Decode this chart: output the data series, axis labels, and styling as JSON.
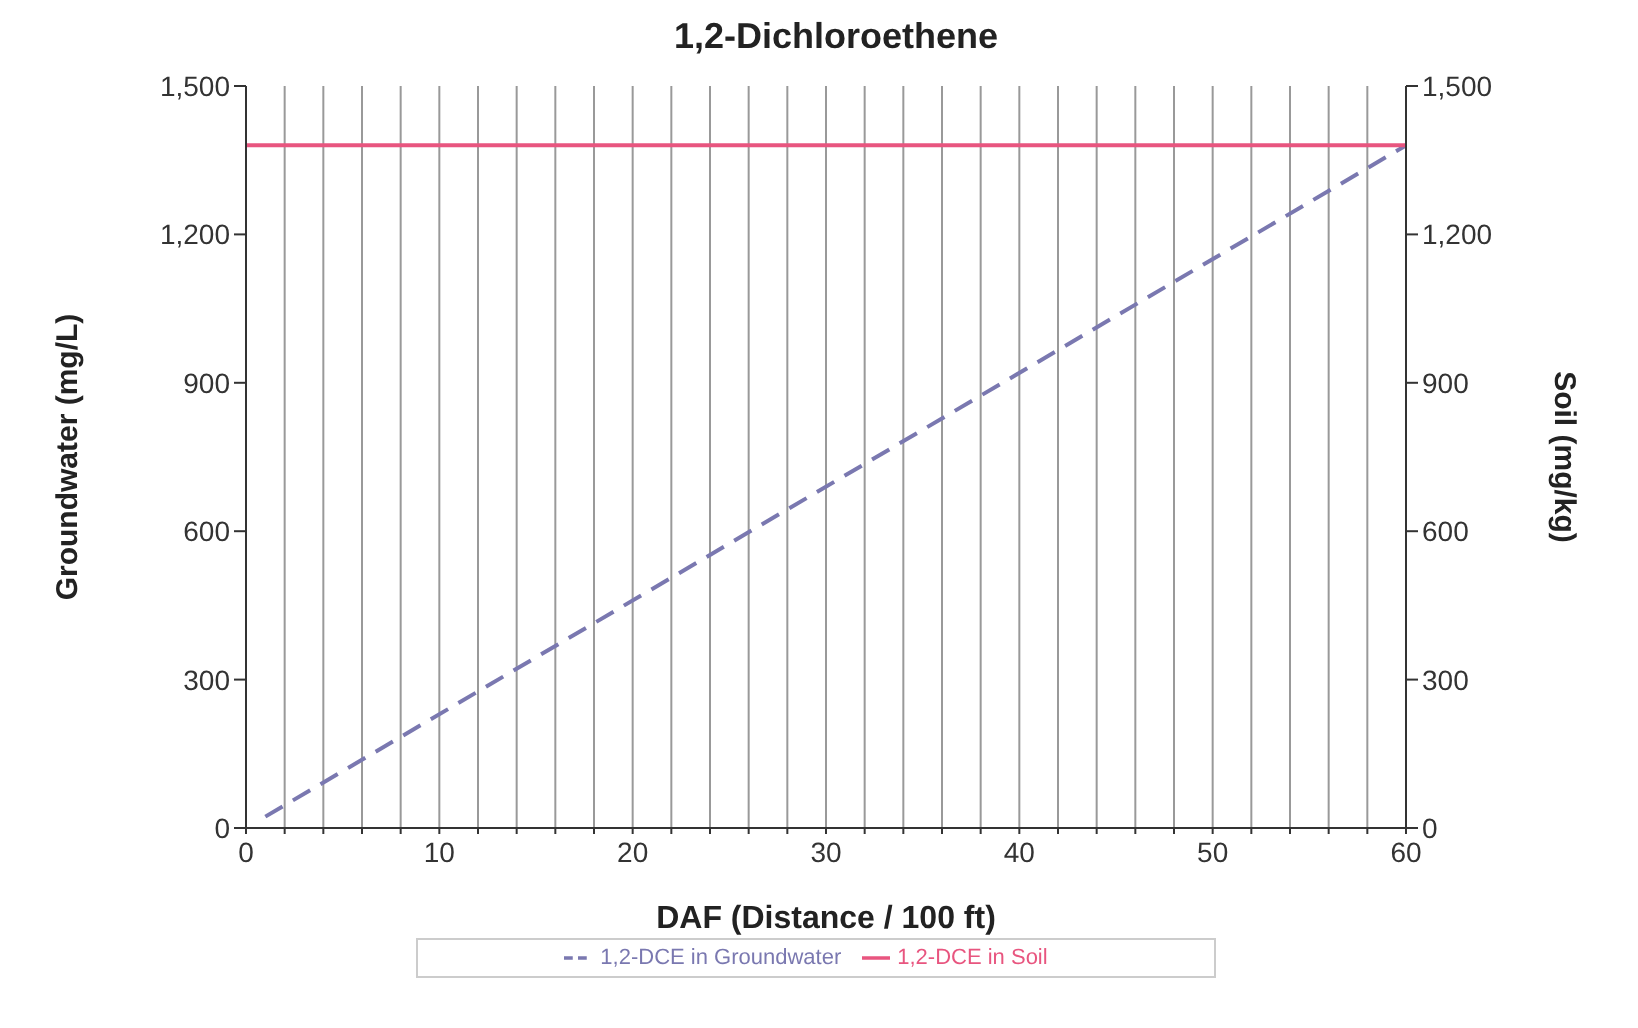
{
  "chart_data": {
    "type": "line",
    "title": "1,2-Dichloroethene",
    "xlabel": "DAF (Distance / 100 ft)",
    "ylabel": "Groundwater (mg/L)",
    "y2label": "Soil (mg/kg)",
    "series": [
      {
        "name": "1,2-DCE in Groundwater",
        "color": "#7a78b0",
        "x": [
          1,
          60
        ],
        "values": [
          23,
          1380
        ],
        "line_style": "dashed"
      },
      {
        "name": "1,2-DCE in Soil",
        "color": "#e8557f",
        "x": [
          0,
          60
        ],
        "values": [
          1380,
          1380
        ],
        "axis": "y2",
        "line_style": "solid"
      }
    ],
    "xlim": [
      0,
      60
    ],
    "xticks": [
      0,
      {
        "value": 2,
        "label": null
      },
      {
        "value": 4,
        "label": null
      },
      {
        "value": 6,
        "label": null
      },
      {
        "value": 8,
        "label": null
      },
      10,
      {
        "value": 12,
        "label": null
      },
      {
        "value": 14,
        "label": null
      },
      {
        "value": 16,
        "label": null
      },
      {
        "value": 18,
        "label": null
      },
      20,
      {
        "value": 22,
        "label": null
      },
      {
        "value": 24,
        "label": null
      },
      {
        "value": 26,
        "label": null
      },
      {
        "value": 28,
        "label": null
      },
      30,
      {
        "value": 32,
        "label": null
      },
      {
        "value": 34,
        "label": null
      },
      {
        "value": 36,
        "label": null
      },
      {
        "value": 38,
        "label": null
      },
      40,
      {
        "value": 42,
        "label": null
      },
      {
        "value": 44,
        "label": null
      },
      {
        "value": 46,
        "label": null
      },
      {
        "value": 48,
        "label": null
      },
      50,
      {
        "value": 52,
        "label": null
      },
      {
        "value": 54,
        "label": null
      },
      {
        "value": 56,
        "label": null
      },
      {
        "value": 58,
        "label": null
      },
      60
    ],
    "ylim": [
      0,
      1500
    ],
    "yticks": [
      {
        "value": 0,
        "label": "0"
      },
      {
        "value": 300,
        "label": "300"
      },
      {
        "value": 600,
        "label": "600"
      },
      {
        "value": 900,
        "label": "900"
      },
      {
        "value": 1200,
        "label": "1,200"
      },
      {
        "value": 1500,
        "label": "1,500"
      }
    ],
    "y2lim": [
      0,
      1500
    ],
    "y2ticks": [
      {
        "value": 0,
        "label": "0"
      },
      {
        "value": 300,
        "label": "300"
      },
      {
        "value": 600,
        "label": "600"
      },
      {
        "value": 900,
        "label": "900"
      },
      {
        "value": 1200,
        "label": "1,200"
      },
      {
        "value": 1500,
        "label": "1,500"
      }
    ],
    "grid": "x",
    "legend": "bottom",
    "marker": "none"
  }
}
